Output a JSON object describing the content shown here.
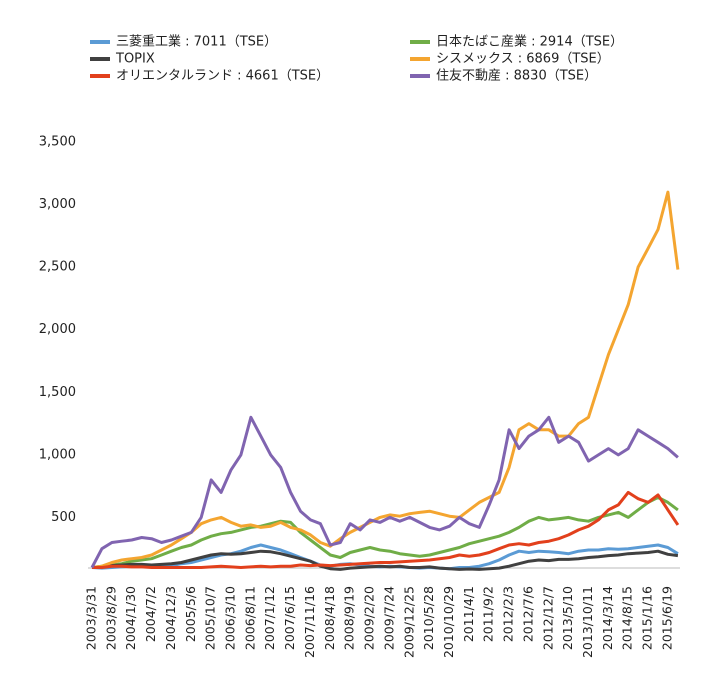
{
  "chart_data": {
    "type": "line",
    "categories": [
      "2003/3/31",
      null,
      "2003/8/29",
      null,
      "2004/1/30",
      null,
      "2004/7/2",
      null,
      "2004/12/3",
      null,
      "2005/5/6",
      null,
      "2005/10/7",
      null,
      "2006/3/10",
      null,
      "2006/8/11",
      null,
      "2007/1/12",
      null,
      "2007/6/15",
      null,
      "2007/11/16",
      null,
      "2008/4/18",
      null,
      "2008/9/19",
      null,
      "2009/2/20",
      null,
      "2009/7/24",
      null,
      "2009/12/25",
      null,
      "2010/5/28",
      null,
      "2010/10/29",
      null,
      "2011/4/1",
      null,
      "2011/9/2",
      null,
      "2012/2/3",
      null,
      "2012/7/6",
      null,
      "2012/12/7",
      null,
      "2013/5/10",
      null,
      "2013/10/11",
      null,
      "2014/3/14",
      null,
      "2014/8/15",
      null,
      "2015/1/16",
      null,
      "2015/6/19",
      null
    ],
    "series": [
      {
        "name": "三菱重工業 : 7011（TSE）",
        "color": "#5b9bd5",
        "values": [
          100,
          95,
          100,
          105,
          110,
          115,
          110,
          110,
          115,
          130,
          140,
          160,
          180,
          200,
          210,
          230,
          260,
          280,
          260,
          240,
          210,
          180,
          150,
          120,
          110,
          125,
          130,
          120,
          110,
          105,
          110,
          105,
          100,
          95,
          100,
          95,
          90,
          100,
          100,
          110,
          130,
          160,
          200,
          230,
          220,
          230,
          225,
          220,
          210,
          230,
          240,
          240,
          250,
          245,
          250,
          260,
          270,
          280,
          260,
          210
        ]
      },
      {
        "name": "日本たばこ産業 : 2914（TSE）",
        "color": "#70ad47",
        "values": [
          100,
          110,
          120,
          130,
          150,
          160,
          170,
          200,
          230,
          260,
          280,
          320,
          350,
          370,
          380,
          400,
          420,
          430,
          450,
          470,
          460,
          380,
          320,
          260,
          200,
          180,
          220,
          240,
          260,
          240,
          230,
          210,
          200,
          190,
          200,
          220,
          240,
          260,
          290,
          310,
          330,
          350,
          380,
          420,
          470,
          500,
          480,
          490,
          500,
          480,
          470,
          500,
          520,
          540,
          500,
          560,
          620,
          660,
          620,
          560
        ]
      },
      {
        "name": "TOPIX",
        "color": "#404040",
        "values": [
          100,
          105,
          115,
          120,
          125,
          125,
          120,
          125,
          130,
          140,
          160,
          180,
          200,
          210,
          205,
          210,
          220,
          230,
          225,
          210,
          190,
          170,
          150,
          110,
          90,
          85,
          95,
          100,
          105,
          110,
          105,
          110,
          100,
          100,
          105,
          95,
          90,
          85,
          88,
          85,
          90,
          95,
          110,
          130,
          150,
          160,
          155,
          165,
          165,
          170,
          180,
          185,
          195,
          200,
          210,
          215,
          220,
          230,
          205,
          195
        ]
      },
      {
        "name": "シスメックス : 6869（TSE）",
        "color": "#f4a530",
        "values": [
          100,
          110,
          140,
          160,
          170,
          180,
          200,
          240,
          280,
          330,
          380,
          450,
          480,
          500,
          460,
          430,
          440,
          420,
          430,
          460,
          420,
          400,
          360,
          300,
          270,
          330,
          380,
          420,
          460,
          500,
          520,
          510,
          530,
          540,
          550,
          530,
          510,
          500,
          560,
          620,
          660,
          700,
          900,
          1200,
          1250,
          1200,
          1200,
          1150,
          1150,
          1250,
          1300,
          1550,
          1800,
          2000,
          2200,
          2500,
          2650,
          2800,
          3100,
          2480
        ]
      },
      {
        "name": "オリエンタルランド : 4661（TSE）",
        "color": "#e2401c",
        "values": [
          100,
          100,
          110,
          110,
          105,
          105,
          100,
          100,
          100,
          100,
          100,
          100,
          105,
          110,
          105,
          100,
          105,
          110,
          105,
          110,
          110,
          120,
          115,
          120,
          115,
          120,
          125,
          130,
          135,
          140,
          140,
          145,
          150,
          155,
          160,
          170,
          180,
          200,
          190,
          200,
          220,
          250,
          280,
          290,
          280,
          300,
          310,
          330,
          360,
          400,
          430,
          480,
          560,
          600,
          700,
          650,
          620,
          680,
          560,
          440
        ]
      },
      {
        "name": "住友不動産 : 8830（TSE）",
        "color": "#8064b0",
        "values": [
          100,
          250,
          300,
          310,
          320,
          340,
          330,
          300,
          320,
          350,
          380,
          500,
          800,
          700,
          880,
          1000,
          1300,
          1150,
          1000,
          900,
          700,
          550,
          480,
          450,
          280,
          300,
          450,
          400,
          480,
          460,
          500,
          470,
          500,
          460,
          420,
          400,
          430,
          500,
          450,
          420,
          600,
          800,
          1200,
          1050,
          1150,
          1200,
          1300,
          1100,
          1150,
          1100,
          950,
          1000,
          1050,
          1000,
          1050,
          1200,
          1150,
          1100,
          1050,
          980
        ]
      }
    ],
    "ylim": [
      0,
      3500
    ],
    "yticks": [
      500,
      {
        "value": 1000,
        "label": "1,000"
      },
      {
        "value": 1500,
        "label": "1,500"
      },
      {
        "value": 2000,
        "label": "2,000"
      },
      {
        "value": 2500,
        "label": "2,500"
      },
      {
        "value": 3000,
        "label": "3,000"
      },
      {
        "value": 3500,
        "label": "3,500"
      }
    ],
    "grid": false
  }
}
